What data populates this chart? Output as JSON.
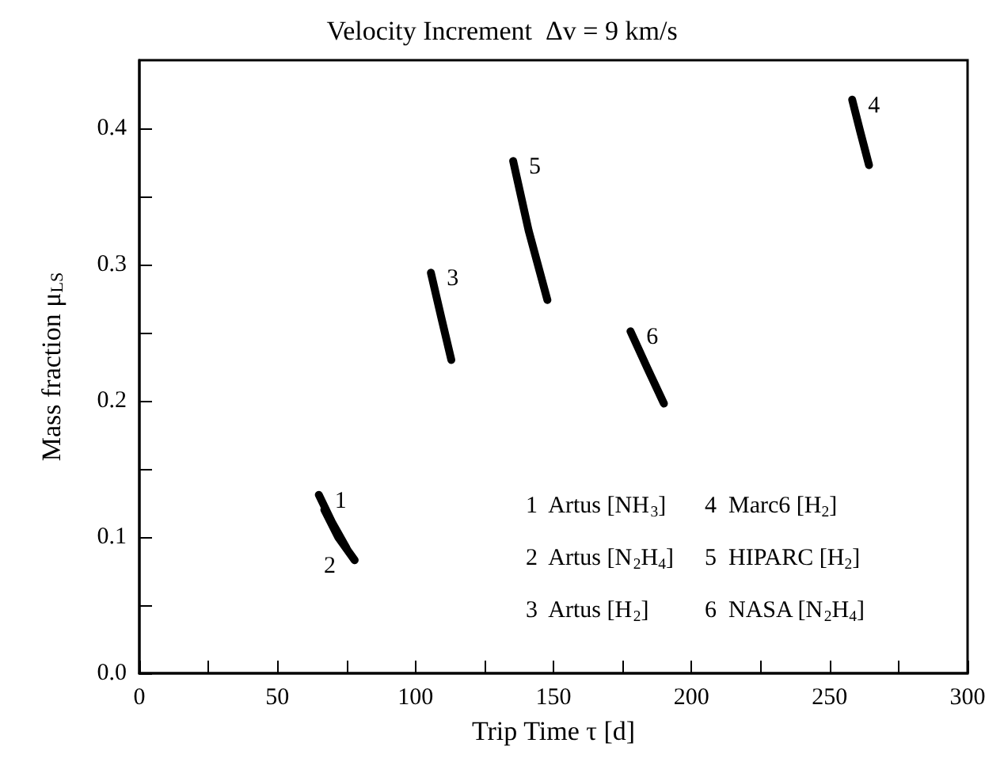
{
  "chart_data": {
    "type": "line",
    "title": "Velocity Increment  Δv = 9 km/s",
    "xlabel": "Trip Time τ [d]",
    "ylabel": "Mass fraction μ$_{LS}$",
    "xlim": [
      0,
      300
    ],
    "xticks": [
      0,
      {
        "value": 25,
        "label": null
      },
      50,
      {
        "value": 75,
        "label": null
      },
      100,
      {
        "value": 125,
        "label": null
      },
      150,
      {
        "value": 175,
        "label": null
      },
      200,
      {
        "value": 225,
        "label": null
      },
      250,
      {
        "value": 275,
        "label": null
      },
      300
    ],
    "ylim": [
      0,
      0.45
    ],
    "yticks": [
      {
        "value": 0,
        "label": "0.0"
      },
      {
        "value": 0.05,
        "label": null
      },
      0.1,
      {
        "value": 0.15,
        "label": null
      },
      0.2,
      {
        "value": 0.25,
        "label": null
      },
      0.3,
      {
        "value": 0.35,
        "label": null
      },
      0.4
    ],
    "grid": false,
    "marker": "none",
    "line_style": "solid",
    "series": [
      {
        "name": "1",
        "color": "#000000",
        "x": [
          65,
          70,
          75
        ],
        "values": [
          0.131,
          0.11,
          0.092
        ]
      },
      {
        "name": "2",
        "color": "#000000",
        "x": [
          67,
          72,
          78
        ],
        "values": [
          0.12,
          0.1,
          0.083
        ]
      },
      {
        "name": "3",
        "color": "#000000",
        "x": [
          105.6,
          109.5,
          113
        ],
        "values": [
          0.294,
          0.26,
          0.23
        ]
      },
      {
        "name": "4",
        "color": "#000000",
        "x": [
          258.2,
          261.2,
          264.3
        ],
        "values": [
          0.421,
          0.397,
          0.373
        ]
      },
      {
        "name": "5",
        "color": "#000000",
        "x": [
          135.4,
          141,
          147.8
        ],
        "values": [
          0.376,
          0.325,
          0.274
        ]
      },
      {
        "name": "6",
        "color": "#000000",
        "x": [
          177.9,
          184,
          190
        ],
        "values": [
          0.251,
          0.224,
          0.198
        ]
      }
    ],
    "annotations": [
      "1  Artus [NH$_{3}$]",
      "2  Artus [N$_{2}$H$_{4}$]",
      "3  Artus [H$_{2}$]",
      "4  Marc6 [H$_{2}$]",
      "5  HIPARC [H$_{2}$]",
      "6  NASA [N$_{2}$H$_{4}$]"
    ]
  }
}
